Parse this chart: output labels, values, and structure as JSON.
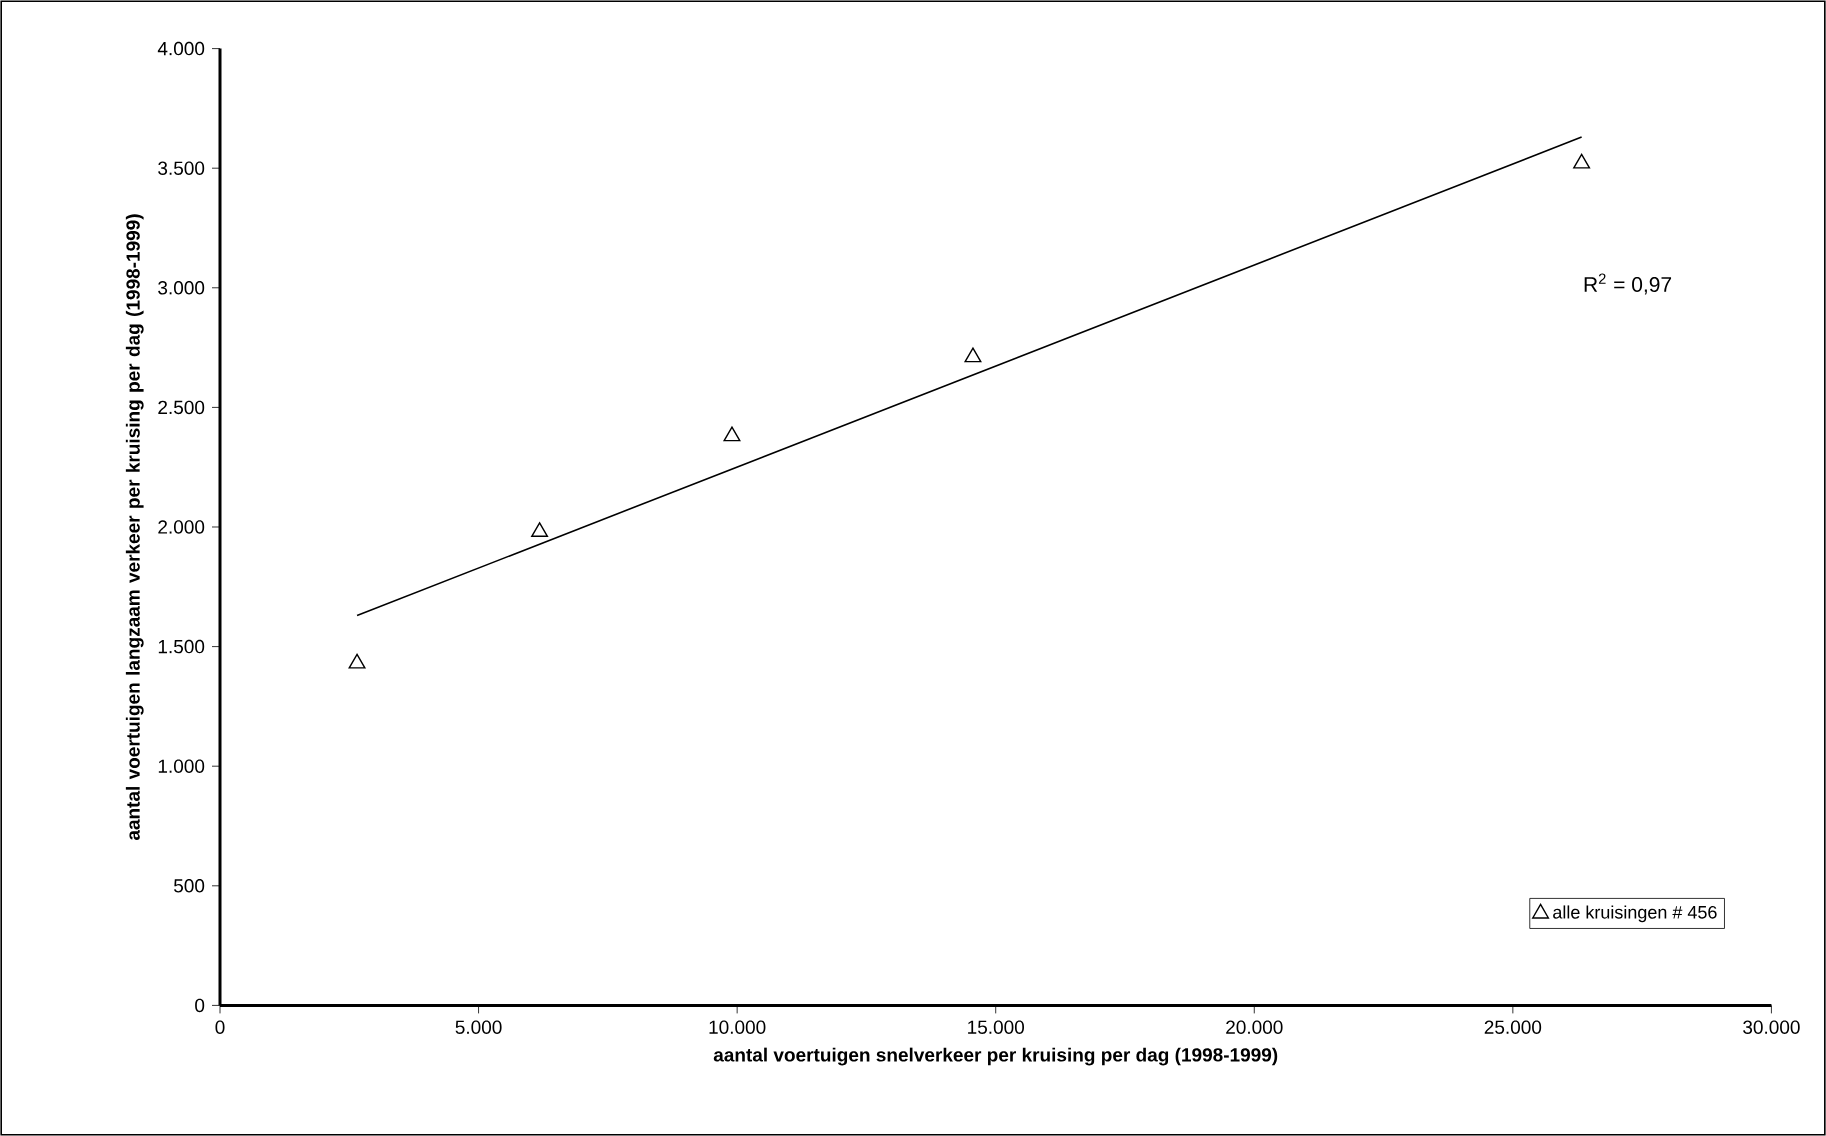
{
  "chart_data": {
    "type": "scatter",
    "xlabel": "aantal voertuigen snelverkeer per kruising per dag (1998-1999)",
    "ylabel": "aantal voertuigen langzaam verkeer per kruising per dag (1998-1999)",
    "annotations": [
      "R$^{2}$ = 0,97"
    ],
    "xlim": [
      0,
      30000
    ],
    "xticks": [
      0,
      {
        "value": 5000,
        "label": "5.000"
      },
      {
        "value": 10000,
        "label": "10.000"
      },
      {
        "value": 15000,
        "label": "15.000"
      },
      {
        "value": 20000,
        "label": "20.000"
      },
      {
        "value": 25000,
        "label": "25.000"
      },
      {
        "value": 30000,
        "label": "30.000"
      }
    ],
    "ylim": [
      0,
      4000
    ],
    "yticks": [
      0,
      500,
      {
        "value": 1000,
        "label": "1.000"
      },
      {
        "value": 1500,
        "label": "1.500"
      },
      {
        "value": 2000,
        "label": "2.000"
      },
      {
        "value": 2500,
        "label": "2.500"
      },
      {
        "value": 3000,
        "label": "3.000"
      },
      {
        "value": 3500,
        "label": "3.500"
      },
      {
        "value": 4000,
        "label": "4.000"
      }
    ],
    "legend": "bottom right",
    "grid": false,
    "series": [
      {
        "name": "alle kruisingen # 456",
        "marker": "triangle",
        "color": "#000000",
        "x": [
          2650,
          6180,
          9900,
          14560,
          26330
        ],
        "values": [
          1430,
          1980,
          2380,
          2710,
          3520
        ]
      },
      {
        "type": "line",
        "marker": "none",
        "color": "#000000",
        "x": [
          2650,
          26330
        ],
        "values": [
          1630,
          3630
        ]
      }
    ]
  }
}
